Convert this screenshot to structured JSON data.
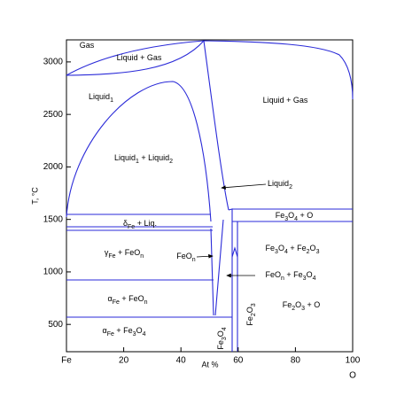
{
  "chart_data": {
    "type": "phase_diagram",
    "xlabel": "At %",
    "ylabel": "T, °C",
    "right_end_label": "O",
    "xlim": [
      0,
      100
    ],
    "ylim": [
      240,
      3210
    ],
    "xticks": [
      {
        "value": 0,
        "label": "Fe"
      },
      20,
      40,
      60,
      80,
      100
    ],
    "yticks": [
      500,
      1000,
      1500,
      2000,
      2500,
      3000
    ],
    "regions": [
      {
        "parts": [
          "Gas"
        ]
      },
      {
        "parts": [
          "Liquid + Gas"
        ]
      },
      {
        "parts": [
          "Liquid",
          "1"
        ]
      },
      {
        "parts": [
          "Liquid + Gas"
        ]
      },
      {
        "parts": [
          "Liquid",
          "1",
          " + Liquid",
          "2"
        ]
      },
      {
        "parts": [
          "Liquid",
          "2"
        ]
      },
      {
        "parts": [
          "δ",
          "Fe",
          " + Liq."
        ]
      },
      {
        "parts": [
          "γ",
          "Fe",
          " + FeO",
          "n"
        ]
      },
      {
        "parts": [
          "FeO",
          "n"
        ]
      },
      {
        "parts": [
          "α",
          "Fe",
          " + FeO",
          "n"
        ]
      },
      {
        "parts": [
          "α",
          "Fe",
          " + Fe",
          "3",
          "O",
          "4"
        ]
      },
      {
        "parts": [
          "Fe",
          "3",
          "O",
          "4"
        ]
      },
      {
        "parts": [
          "Fe",
          "2",
          "O",
          "3"
        ]
      },
      {
        "parts": [
          "Fe",
          "3",
          "O",
          "4",
          " + O"
        ]
      },
      {
        "parts": [
          "Fe",
          "3",
          "O",
          "4",
          " + Fe",
          "2",
          "O",
          "3"
        ]
      },
      {
        "parts": [
          "FeO",
          "n",
          " + Fe",
          "3",
          "O",
          "4"
        ]
      },
      {
        "parts": [
          "Fe",
          "2",
          "O",
          "3",
          " + O"
        ]
      }
    ]
  }
}
